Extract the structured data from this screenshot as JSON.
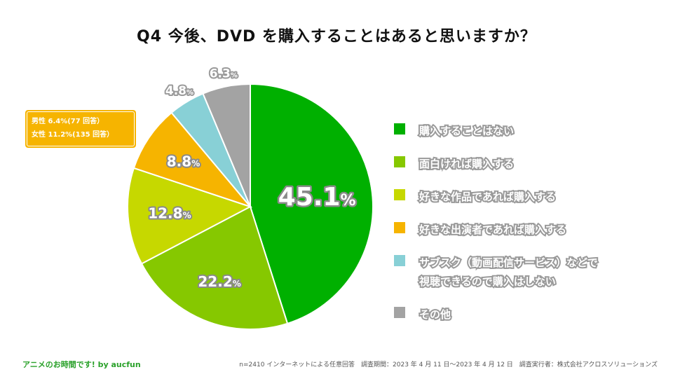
{
  "title": "Q4 今後、DVD を購入することはあると思いますか？",
  "chart_data": {
    "type": "pie",
    "start": "12 o'clock",
    "direction": "clockwise",
    "slices": [
      {
        "label": "購入することはない",
        "value": 45.1,
        "display": "45.1",
        "unit": "%",
        "color": "#00b000",
        "label_style": "inside-large"
      },
      {
        "label": "面白ければ購入する",
        "value": 22.2,
        "display": "22.2",
        "unit": "%",
        "color": "#86c800",
        "label_style": "inside"
      },
      {
        "label": "好きな作品であれば購入する",
        "value": 12.8,
        "display": "12.8",
        "unit": "%",
        "color": "#c6d800",
        "label_style": "inside"
      },
      {
        "label": "好きな出演者であれば購入する",
        "value": 8.8,
        "display": "8.8",
        "unit": "%",
        "color": "#f6b400",
        "label_style": "inside"
      },
      {
        "label": "サブスク（動画配信サービス）などで視聴できるので購入はしない",
        "value": 4.8,
        "display": "4.8",
        "unit": "%",
        "color": "#88d0d6",
        "label_style": "outside"
      },
      {
        "label": "その他",
        "value": 6.3,
        "display": "6.3",
        "unit": "%",
        "color": "#a3a3a3",
        "label_style": "outside"
      }
    ]
  },
  "legend": [
    {
      "lines": [
        "購入することはない"
      ],
      "color": "#00b000"
    },
    {
      "lines": [
        "面白ければ購入する"
      ],
      "color": "#86c800"
    },
    {
      "lines": [
        "好きな作品であれば購入する"
      ],
      "color": "#c6d800"
    },
    {
      "lines": [
        "好きな出演者であれば購入する"
      ],
      "color": "#f6b400"
    },
    {
      "lines": [
        "サブスク（動画配信サービス）などで",
        "視聴できるので購入はしない"
      ],
      "color": "#88d0d6"
    },
    {
      "lines": [
        "その他"
      ],
      "color": "#a3a3a3"
    }
  ],
  "callout": {
    "line1": "男性 6.4%(77 回答）",
    "line2": "女性 11.2%(135 回答）"
  },
  "footer": {
    "left": "アニメのお時間です! by aucfun",
    "right": "n=2410 インターネットによる任意回答　調査期間：2023 年 4 月 11 日～2023 年 4 月 12 日　調査実行者：株式会社アクロスソリューションズ"
  }
}
